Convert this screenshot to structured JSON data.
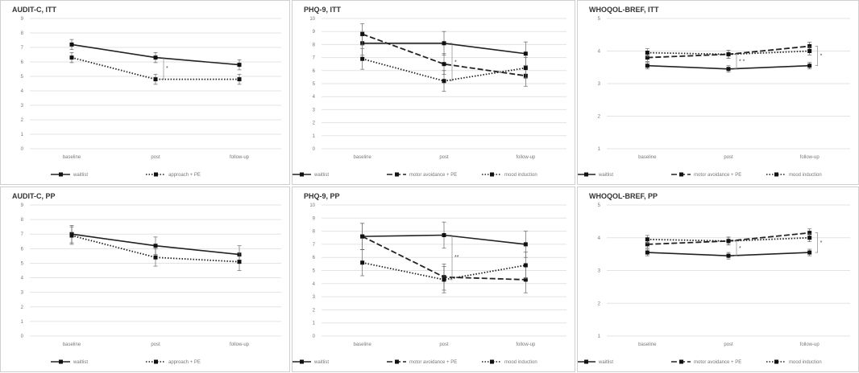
{
  "chart_data": [
    {
      "type": "line",
      "title": "AUDIT-C, ITT",
      "categories": [
        "baseline",
        "post",
        "follow-up"
      ],
      "ylim": [
        0,
        9
      ],
      "yticks": [
        "0",
        "1",
        "2",
        "3",
        "4",
        "5",
        "6",
        "7",
        "8",
        "9"
      ],
      "legend_position": "bottom",
      "series": [
        {
          "name": "waitlist",
          "style": "solid",
          "values": [
            7.2,
            6.3,
            5.8
          ],
          "err": [
            0.35,
            0.35,
            0.35
          ]
        },
        {
          "name": "approach + PE",
          "style": "dotted",
          "values": [
            6.3,
            4.8,
            4.8
          ],
          "err": [
            0.35,
            0.35,
            0.35
          ]
        }
      ],
      "annotations": [
        {
          "text": "*",
          "at": 1
        }
      ]
    },
    {
      "type": "line",
      "title": "PHQ-9, ITT",
      "categories": [
        "baseline",
        "post",
        "follow-up"
      ],
      "ylim": [
        0,
        10
      ],
      "yticks": [
        "0",
        "1",
        "2",
        "3",
        "4",
        "5",
        "6",
        "7",
        "8",
        "9",
        "10"
      ],
      "legend_position": "bottom",
      "series": [
        {
          "name": "waitlist",
          "style": "solid",
          "values": [
            8.1,
            8.1,
            7.3
          ],
          "err": [
            0.9,
            0.9,
            0.9
          ]
        },
        {
          "name": "motor avoidance + PE",
          "style": "dashed",
          "values": [
            8.8,
            6.5,
            5.6
          ],
          "err": [
            0.8,
            0.8,
            0.8
          ]
        },
        {
          "name": "mood induction",
          "style": "dotted",
          "values": [
            6.9,
            5.2,
            6.2
          ],
          "err": [
            0.8,
            0.8,
            0.8
          ]
        }
      ],
      "annotations": [
        {
          "text": "*",
          "at": 1
        }
      ]
    },
    {
      "type": "line",
      "title": "WHOQOL-BREF, ITT",
      "categories": [
        "baseline",
        "post",
        "follow-up"
      ],
      "ylim": [
        1,
        5
      ],
      "yticks": [
        "1",
        "2",
        "3",
        "4",
        "5"
      ],
      "legend_position": "bottom",
      "series": [
        {
          "name": "waitlist",
          "style": "solid",
          "values": [
            3.55,
            3.45,
            3.55
          ],
          "err": [
            0.1,
            0.1,
            0.1
          ]
        },
        {
          "name": "motor avoidance + PE",
          "style": "dashed",
          "values": [
            3.8,
            3.9,
            4.15
          ],
          "err": [
            0.12,
            0.12,
            0.12
          ]
        },
        {
          "name": "mood induction",
          "style": "dotted",
          "values": [
            3.95,
            3.9,
            4.0
          ],
          "err": [
            0.12,
            0.12,
            0.12
          ]
        }
      ],
      "annotations": [
        {
          "text": "* *",
          "at": 1
        },
        {
          "text": "*",
          "at": 2
        }
      ]
    },
    {
      "type": "line",
      "title": "AUDIT-C, PP",
      "categories": [
        "baseline",
        "post",
        "follow-up"
      ],
      "ylim": [
        0,
        9
      ],
      "yticks": [
        "0",
        "1",
        "2",
        "3",
        "4",
        "5",
        "6",
        "7",
        "8",
        "9"
      ],
      "legend_position": "bottom",
      "series": [
        {
          "name": "waitlist",
          "style": "solid",
          "values": [
            7.0,
            6.2,
            5.6
          ],
          "err": [
            0.6,
            0.6,
            0.6
          ]
        },
        {
          "name": "approach + PE",
          "style": "dotted",
          "values": [
            6.9,
            5.4,
            5.1
          ],
          "err": [
            0.6,
            0.6,
            0.6
          ]
        }
      ],
      "annotations": []
    },
    {
      "type": "line",
      "title": "PHQ-9, PP",
      "categories": [
        "baseline",
        "post",
        "follow-up"
      ],
      "ylim": [
        0,
        10
      ],
      "yticks": [
        "0",
        "1",
        "2",
        "3",
        "4",
        "5",
        "6",
        "7",
        "8",
        "9",
        "10"
      ],
      "legend_position": "bottom",
      "series": [
        {
          "name": "waitlist",
          "style": "solid",
          "values": [
            7.6,
            7.7,
            7.0
          ],
          "err": [
            1.0,
            1.0,
            1.0
          ]
        },
        {
          "name": "motor avoidance + PE",
          "style": "dashed",
          "values": [
            7.6,
            4.5,
            4.3
          ],
          "err": [
            1.0,
            1.0,
            1.0
          ]
        },
        {
          "name": "mood induction",
          "style": "dotted",
          "values": [
            5.6,
            4.3,
            5.4
          ],
          "err": [
            1.0,
            1.0,
            1.0
          ]
        }
      ],
      "annotations": [
        {
          "text": "**",
          "at": 1
        }
      ]
    },
    {
      "type": "line",
      "title": "WHOQOL-BREF, PP",
      "categories": [
        "baseline",
        "post",
        "follow-up"
      ],
      "ylim": [
        1,
        5
      ],
      "yticks": [
        "1",
        "2",
        "3",
        "4",
        "5"
      ],
      "legend_position": "bottom",
      "series": [
        {
          "name": "waitlist",
          "style": "solid",
          "values": [
            3.55,
            3.45,
            3.55
          ],
          "err": [
            0.1,
            0.1,
            0.1
          ]
        },
        {
          "name": "motor avoidance + PE",
          "style": "dashed",
          "values": [
            3.8,
            3.9,
            4.15
          ],
          "err": [
            0.12,
            0.12,
            0.12
          ]
        },
        {
          "name": "mood induction",
          "style": "dotted",
          "values": [
            3.95,
            3.9,
            4.0
          ],
          "err": [
            0.12,
            0.12,
            0.12
          ]
        }
      ],
      "annotations": [
        {
          "text": "*",
          "at": 1
        },
        {
          "text": "*",
          "at": 2
        }
      ]
    }
  ]
}
